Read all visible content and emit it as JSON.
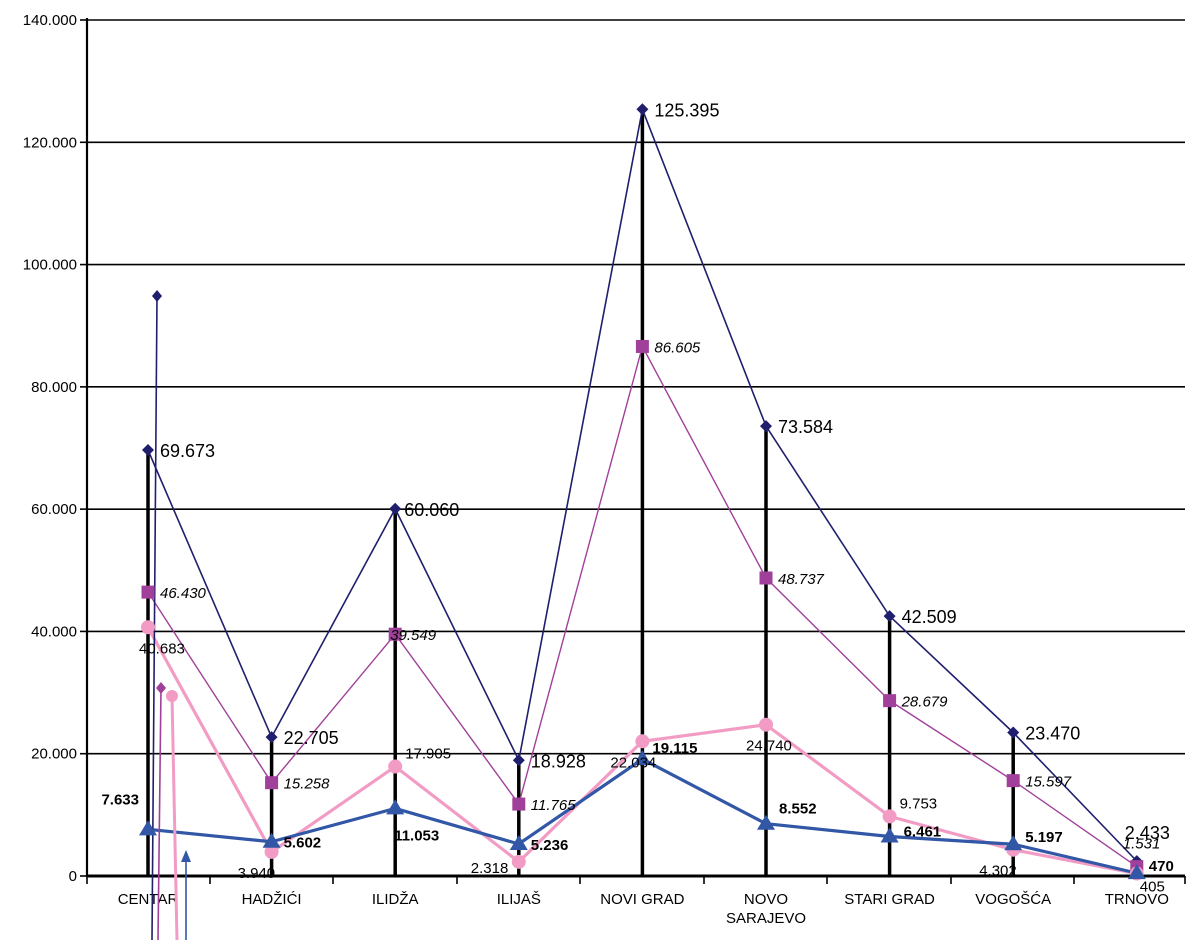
{
  "chart_data": {
    "type": "line",
    "categories": [
      "CENTAR",
      "HADŽIĆI",
      "ILIDŽA",
      "ILIJAŠ",
      "NOVI GRAD",
      "NOVO SARAJEVO",
      "STARI GRAD",
      "VOGOŠĆA",
      "TRNOVO"
    ],
    "category_lines": [
      [
        "CENTAR"
      ],
      [
        "HADŽIĆI"
      ],
      [
        "ILIDŽA"
      ],
      [
        "ILIJAŠ"
      ],
      [
        "NOVI GRAD"
      ],
      [
        "NOVO",
        "SARAJEVO"
      ],
      [
        "STARI GRAD"
      ],
      [
        "VOGOŠĆA"
      ],
      [
        "TRNOVO"
      ]
    ],
    "ylim": [
      0,
      140000
    ],
    "y_ticks": [
      0,
      20000,
      40000,
      60000,
      80000,
      100000,
      120000,
      140000
    ],
    "y_tick_labels": [
      "0",
      "20.000",
      "40.000",
      "60.000",
      "80.000",
      "100.000",
      "120.000",
      "140.000"
    ],
    "grid": true,
    "legend": "none",
    "series": [
      {
        "values": [
          69673,
          22705,
          60060,
          18928,
          125395,
          73584,
          42509,
          23470,
          2433
        ],
        "labels": [
          "69.673",
          "22.705",
          "60.060",
          "18.928",
          "125.395",
          "73.584",
          "42.509",
          "23.470",
          "2.433"
        ],
        "color": "#1f1f6e",
        "marker": "diamond",
        "width": 1.6
      },
      {
        "values": [
          46430,
          15258,
          39549,
          11765,
          86605,
          48737,
          28679,
          15597,
          1531
        ],
        "labels": [
          "46.430",
          "15.258",
          "39.549",
          "11.765",
          "86.605",
          "48.737",
          "28.679",
          "15.597",
          "1.531"
        ],
        "color": "#a0409a",
        "marker": "square",
        "width": 1.4
      },
      {
        "values": [
          40683,
          3940,
          17905,
          2318,
          22034,
          24740,
          9753,
          4302,
          405
        ],
        "labels": [
          "40.683",
          "3.940",
          "17.905",
          "2.318",
          "22.034",
          "24.740",
          "9.753",
          "4.302",
          "405"
        ],
        "color": "#f29cc5",
        "marker": "circle",
        "width": 3.2
      },
      {
        "values": [
          7633,
          5602,
          11053,
          5236,
          19115,
          8552,
          6461,
          5197,
          470
        ],
        "labels": [
          "7.633",
          "5.602",
          "11.053",
          "5.236",
          "19.115",
          "8.552",
          "6.461",
          "5.197",
          "470"
        ],
        "color": "#3157a6",
        "marker": "triangle",
        "width": 3.2
      }
    ]
  }
}
